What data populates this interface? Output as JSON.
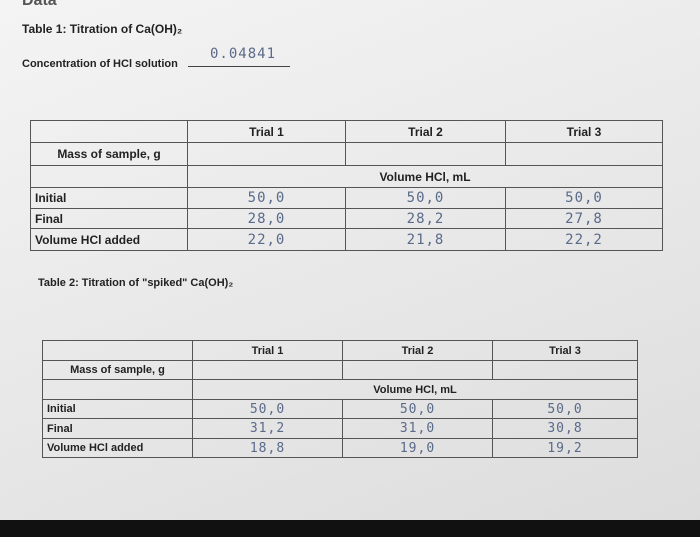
{
  "header": {
    "title": "Data"
  },
  "concentration": {
    "label": "Concentration of HCl solution",
    "value": "0.04841"
  },
  "table1": {
    "title": "Table 1: Titration of Ca(OH)₂",
    "columns": [
      "Trial 1",
      "Trial 2",
      "Trial 3"
    ],
    "mass_label": "Mass of sample, g",
    "volume_label": "Volume HCl, mL",
    "rows": [
      {
        "label": "Initial",
        "values": [
          "50,0",
          "50,0",
          "50,0"
        ]
      },
      {
        "label": "Final",
        "values": [
          "28,0",
          "28,2",
          "27,8"
        ]
      },
      {
        "label": "Volume HCl added",
        "values": [
          "22,0",
          "21,8",
          "22,2"
        ]
      }
    ]
  },
  "table2": {
    "title": "Table 2: Titration of \"spiked\" Ca(OH)₂",
    "columns": [
      "Trial 1",
      "Trial 2",
      "Trial 3"
    ],
    "mass_label": "Mass of sample, g",
    "volume_label": "Volume HCl, mL",
    "rows": [
      {
        "label": "Initial",
        "values": [
          "50,0",
          "50,0",
          "50,0"
        ]
      },
      {
        "label": "Final",
        "values": [
          "31,2",
          "31,0",
          "30,8"
        ]
      },
      {
        "label": "Volume HCl added",
        "values": [
          "18,8",
          "19,0",
          "19,2"
        ]
      }
    ]
  }
}
